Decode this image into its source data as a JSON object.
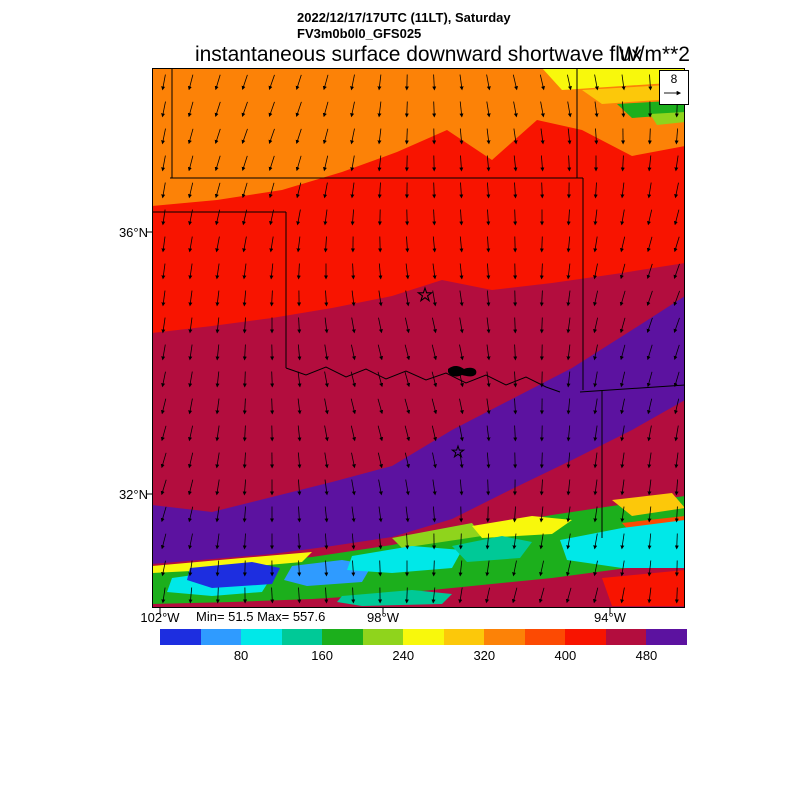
{
  "header": {
    "datetime_line": "2022/12/17/17UTC (11LT), Saturday",
    "model_line": "FV3m0b0l0_GFS025",
    "title": "instantaneous surface downward shortwave flux",
    "units": "W/m**2"
  },
  "map": {
    "lat_labels": [
      "36°N",
      "32°N"
    ],
    "lon_labels": [
      "102°W",
      "98°W",
      "94°W"
    ],
    "stats_text": "Min= 51.5 Max= 557.6",
    "reference_vector_label": "8"
  },
  "palette": {
    "blue": "#1d2ee0",
    "azure": "#2f9bff",
    "cyan": "#00e8e8",
    "teal": "#00c997",
    "green": "#1caf1c",
    "chartreuse": "#8fd41c",
    "yellow": "#f8f80c",
    "gold": "#fcc80a",
    "orange": "#fc8207",
    "orange_red": "#fc4a03",
    "red": "#f81400",
    "crimson": "#b30d3e",
    "purple": "#5c12a0",
    "line": "#000000"
  },
  "chart_data": {
    "type": "heatmap",
    "title": "instantaneous surface downward shortwave flux",
    "units": "W/m**2",
    "model_run": "FV3m0b0l0_GFS025",
    "valid_time": "2022/12/17/17UTC (11LT), Saturday",
    "stats": {
      "min": 51.5,
      "max": 557.6
    },
    "colorbar": {
      "orientation": "horizontal",
      "range": [
        40,
        560
      ],
      "segment_width_value": 40,
      "colors": [
        "#1d2ee0",
        "#2f9bff",
        "#00e8e8",
        "#00c997",
        "#1caf1c",
        "#8fd41c",
        "#f8f80c",
        "#fcc80a",
        "#fc8207",
        "#fc4a03",
        "#f81400",
        "#b30d3e",
        "#5c12a0"
      ],
      "tick_labels": [
        "80",
        "160",
        "240",
        "320",
        "400",
        "480"
      ]
    },
    "overlay": {
      "type": "wind-vectors",
      "reference_label": "8"
    },
    "axes": {
      "lat_ticks": [
        "36°N",
        "32°N"
      ],
      "lon_ticks": [
        "102°W",
        "98°W",
        "94°W"
      ],
      "grid": false
    },
    "regions_by_color": {
      "purple_south_band": "highest flux (~520-560)",
      "crimson_central": "~480-520",
      "red_band": "~440-480",
      "orange_north_band": "~360-400",
      "cloud_strip_south": "low flux patches (~80-280)"
    }
  }
}
